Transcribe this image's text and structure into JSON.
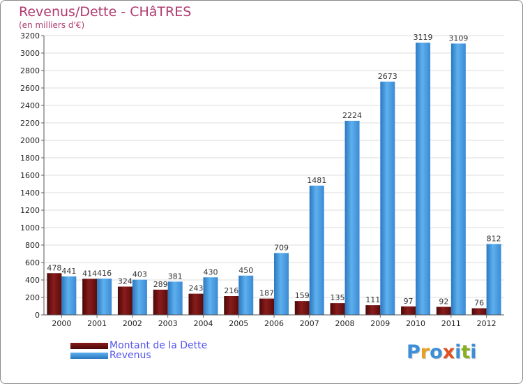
{
  "title": "Revenus/Dette - CHâTRES",
  "subtitle": "(en milliers d'€)",
  "logo_text": "Proxiti",
  "colors": {
    "dette": "#6b0f0f",
    "revenus": "#3a8fd6",
    "title": "#b03a70",
    "legend_text": "#5555ee"
  },
  "chart_data": {
    "type": "bar",
    "categories": [
      "2000",
      "2001",
      "2002",
      "2003",
      "2004",
      "2005",
      "2006",
      "2007",
      "2008",
      "2009",
      "2010",
      "2011",
      "2012"
    ],
    "series": [
      {
        "name": "Montant de la Dette",
        "values": [
          478,
          414,
          324,
          289,
          243,
          216,
          187,
          159,
          135,
          111,
          97,
          92,
          76
        ]
      },
      {
        "name": "Revenus",
        "values": [
          441,
          416,
          403,
          381,
          430,
          450,
          709,
          1481,
          2224,
          2673,
          3119,
          3109,
          812
        ]
      }
    ],
    "ylim": [
      0,
      3200
    ],
    "yticks": [
      0,
      200,
      400,
      600,
      800,
      1000,
      1200,
      1400,
      1600,
      1800,
      2000,
      2200,
      2400,
      2600,
      2800,
      3000,
      3200
    ],
    "grid": true,
    "legend_position": "bottom-left"
  }
}
